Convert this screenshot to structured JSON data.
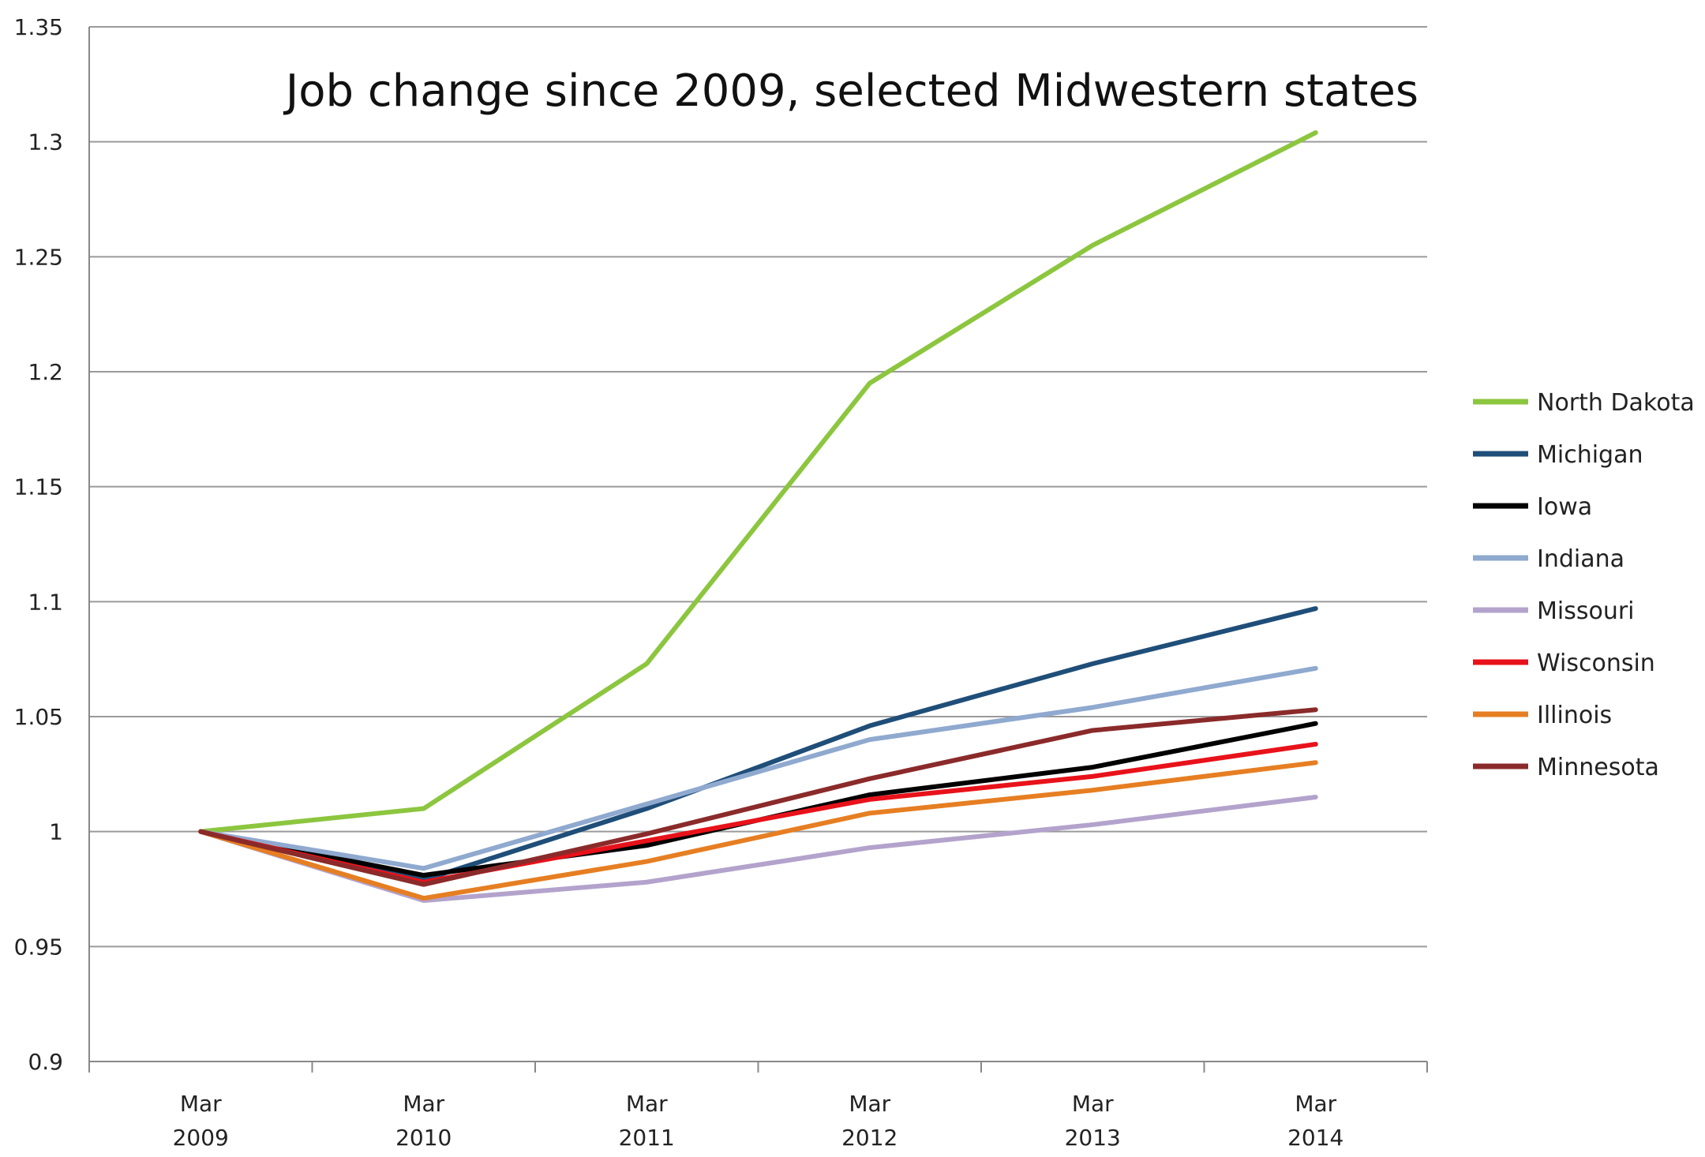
{
  "chart_data": {
    "type": "line",
    "title": "Job change since 2009, selected Midwestern states",
    "categories": [
      {
        "line1": "Mar",
        "line2": "2009"
      },
      {
        "line1": "Mar",
        "line2": "2010"
      },
      {
        "line1": "Mar",
        "line2": "2011"
      },
      {
        "line1": "Mar",
        "line2": "2012"
      },
      {
        "line1": "Mar",
        "line2": "2013"
      },
      {
        "line1": "Mar",
        "line2": "2014"
      }
    ],
    "ylim": [
      0.9,
      1.35
    ],
    "yticks": [
      "0.9",
      "0.95",
      "1",
      "1.05",
      "1.1",
      "1.15",
      "1.2",
      "1.25",
      "1.3",
      "1.35"
    ],
    "grid": true,
    "legend_position": "right",
    "series": [
      {
        "name": "North Dakota",
        "color": "#8cc63f",
        "values": [
          1.0,
          1.01,
          1.073,
          1.195,
          1.255,
          1.304
        ]
      },
      {
        "name": "Michigan",
        "color": "#1f4e79",
        "values": [
          1.0,
          0.979,
          1.01,
          1.046,
          1.073,
          1.097
        ]
      },
      {
        "name": "Iowa",
        "color": "#000000",
        "values": [
          1.0,
          0.981,
          0.994,
          1.016,
          1.028,
          1.047
        ]
      },
      {
        "name": "Indiana",
        "color": "#8fa9cf",
        "values": [
          1.0,
          0.984,
          1.012,
          1.04,
          1.054,
          1.071
        ]
      },
      {
        "name": "Missouri",
        "color": "#b3a3cc",
        "values": [
          1.0,
          0.97,
          0.978,
          0.993,
          1.003,
          1.015
        ]
      },
      {
        "name": "Wisconsin",
        "color": "#e8121a",
        "values": [
          1.0,
          0.978,
          0.996,
          1.014,
          1.024,
          1.038
        ]
      },
      {
        "name": "Illinois",
        "color": "#e67e22",
        "values": [
          1.0,
          0.971,
          0.987,
          1.008,
          1.018,
          1.03
        ]
      },
      {
        "name": "Minnesota",
        "color": "#8b2a2a",
        "values": [
          1.0,
          0.977,
          0.999,
          1.023,
          1.044,
          1.053
        ]
      }
    ]
  }
}
